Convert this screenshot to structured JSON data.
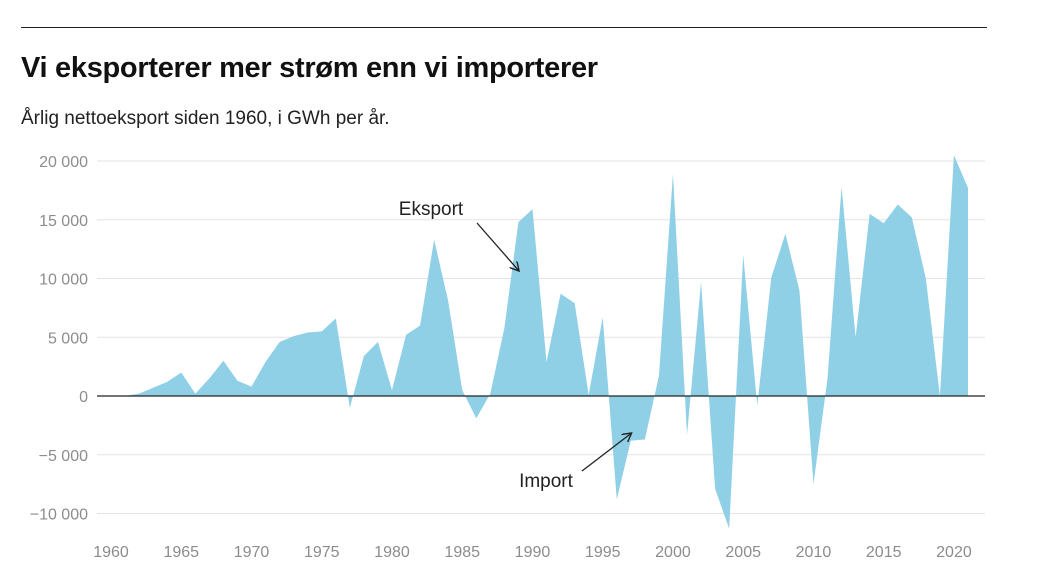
{
  "header": {
    "title": "Vi eksporterer mer strøm enn vi importerer",
    "subtitle": "Årlig nettoeksport siden 1960, i GWh per år."
  },
  "colors": {
    "area_fill": "#8fd0e7",
    "gridline": "#e3e3e3",
    "zero_line": "#222222",
    "tick_text": "#8c8c8c",
    "text": "#222222"
  },
  "chart_data": {
    "type": "area",
    "title": "Vi eksporterer mer strøm enn vi importerer",
    "subtitle": "Årlig nettoeksport siden 1960, i GWh per år.",
    "xlabel": "",
    "ylabel": "",
    "xlim": [
      1960,
      2021
    ],
    "ylim": [
      -11500,
      20500
    ],
    "grid": true,
    "y_ticks": [
      {
        "value": 20000,
        "label": "20 000"
      },
      {
        "value": 15000,
        "label": "15 000"
      },
      {
        "value": 10000,
        "label": "10 000"
      },
      {
        "value": 5000,
        "label": "5 000"
      },
      {
        "value": 0,
        "label": "0"
      },
      {
        "value": -5000,
        "label": "−5 000"
      },
      {
        "value": -10000,
        "label": "−10 000"
      }
    ],
    "x_ticks": [
      {
        "value": 1960,
        "label": "1960"
      },
      {
        "value": 1965,
        "label": "1965"
      },
      {
        "value": 1970,
        "label": "1970"
      },
      {
        "value": 1975,
        "label": "1975"
      },
      {
        "value": 1980,
        "label": "1980"
      },
      {
        "value": 1985,
        "label": "1985"
      },
      {
        "value": 1990,
        "label": "1990"
      },
      {
        "value": 1995,
        "label": "1995"
      },
      {
        "value": 2000,
        "label": "2000"
      },
      {
        "value": 2005,
        "label": "2005"
      },
      {
        "value": 2010,
        "label": "2010"
      },
      {
        "value": 2015,
        "label": "2015"
      },
      {
        "value": 2020,
        "label": "2020"
      }
    ],
    "series": [
      {
        "x": [
          1960,
          1961,
          1962,
          1963,
          1964,
          1965,
          1966,
          1967,
          1968,
          1969,
          1970,
          1971,
          1972,
          1973,
          1974,
          1975,
          1976,
          1977,
          1978,
          1979,
          1980,
          1981,
          1982,
          1983,
          1984,
          1985,
          1986,
          1987,
          1988,
          1989,
          1990,
          1991,
          1992,
          1993,
          1994,
          1995,
          1996,
          1997,
          1998,
          1999,
          2000,
          2001,
          2002,
          2003,
          2004,
          2005,
          2006,
          2007,
          2008,
          2009,
          2010,
          2011,
          2012,
          2013,
          2014,
          2015,
          2016,
          2017,
          2018,
          2019,
          2020,
          2021
        ],
        "values": [
          0,
          0,
          200,
          700,
          1200,
          2000,
          200,
          1500,
          3000,
          1300,
          800,
          2900,
          4600,
          5100,
          5400,
          5500,
          6600,
          -1000,
          3400,
          4600,
          500,
          5200,
          6000,
          13300,
          8100,
          500,
          -1900,
          200,
          5800,
          14800,
          15900,
          2900,
          8700,
          7900,
          100,
          6700,
          -8800,
          -3800,
          -3700,
          1700,
          18900,
          -3300,
          9700,
          -7900,
          -11300,
          12000,
          -800,
          10100,
          13800,
          9000,
          -7500,
          1500,
          17800,
          5000,
          15500,
          14700,
          16300,
          15200,
          10000,
          0,
          20500,
          17700
        ]
      }
    ],
    "annotations": [
      {
        "label": "Eksport",
        "x": 1989,
        "y": 10700
      },
      {
        "label": "Import",
        "x": 1997,
        "y": -3200
      }
    ]
  }
}
